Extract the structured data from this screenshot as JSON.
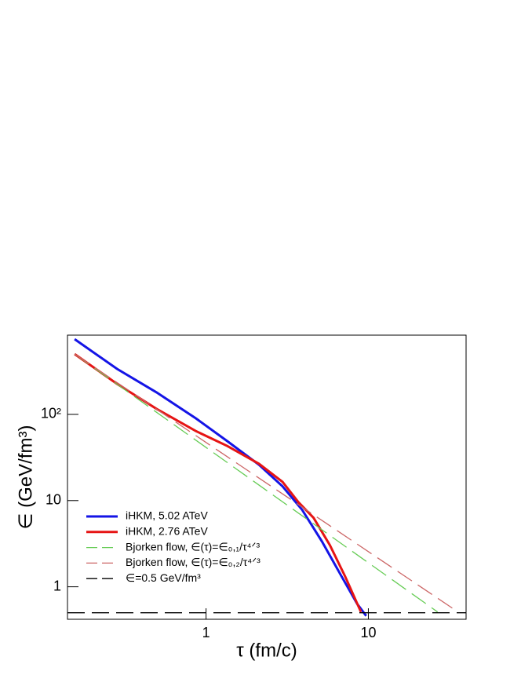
{
  "chart_data": {
    "type": "line",
    "xlabel": "τ (fm/c)",
    "ylabel": "∈ (GeV/fm³)",
    "xscale": "log",
    "yscale": "log",
    "xlim": [
      0.14,
      40
    ],
    "ylim": [
      0.42,
      830
    ],
    "xticks": [
      1,
      10
    ],
    "yticks": [
      1,
      10,
      {
        "value": 100,
        "label": "10²"
      }
    ],
    "legend": "lower left",
    "series": [
      {
        "name": "iHKM, 5.02 ATeV",
        "color": "#1414e6",
        "style": "solid",
        "x": [
          0.155,
          0.283,
          0.495,
          0.865,
          1.35,
          2.12,
          2.96,
          3.91,
          5.17,
          6.85,
          8.55,
          9.7
        ],
        "values": [
          746,
          337,
          180,
          90,
          49,
          26,
          14.6,
          7.8,
          3.37,
          1.31,
          0.63,
          0.46
        ]
      },
      {
        "name": "iHKM, 2.76 ATeV",
        "color": "#e61414",
        "style": "solid",
        "x": [
          0.155,
          0.283,
          0.495,
          0.865,
          1.35,
          2.12,
          2.96,
          3.7,
          4.6,
          5.8,
          7.2,
          9.0
        ],
        "values": [
          501,
          226,
          116,
          64,
          43,
          26.7,
          16.5,
          9.6,
          6.3,
          3.03,
          1.31,
          0.51
        ]
      },
      {
        "name": "Bjorken flow, ∈(τ)=∈₀,₁/τ⁴ᐟ³",
        "color": "#66cc55",
        "style": "dashed",
        "x": [
          0.155,
          26.7
        ],
        "values": [
          501,
          0.51
        ]
      },
      {
        "name": "Bjorken flow, ∈(τ)=∈₀,₂/τ⁴ᐟ³",
        "color": "#cc6666",
        "style": "dashed",
        "x": [
          0.155,
          35.7
        ],
        "values": [
          501,
          0.51
        ]
      },
      {
        "name": "∈=0.5 GeV/fm³",
        "color": "#000000",
        "style": "dashed",
        "x": [
          0.14,
          40
        ],
        "values": [
          0.5,
          0.5
        ]
      }
    ]
  }
}
